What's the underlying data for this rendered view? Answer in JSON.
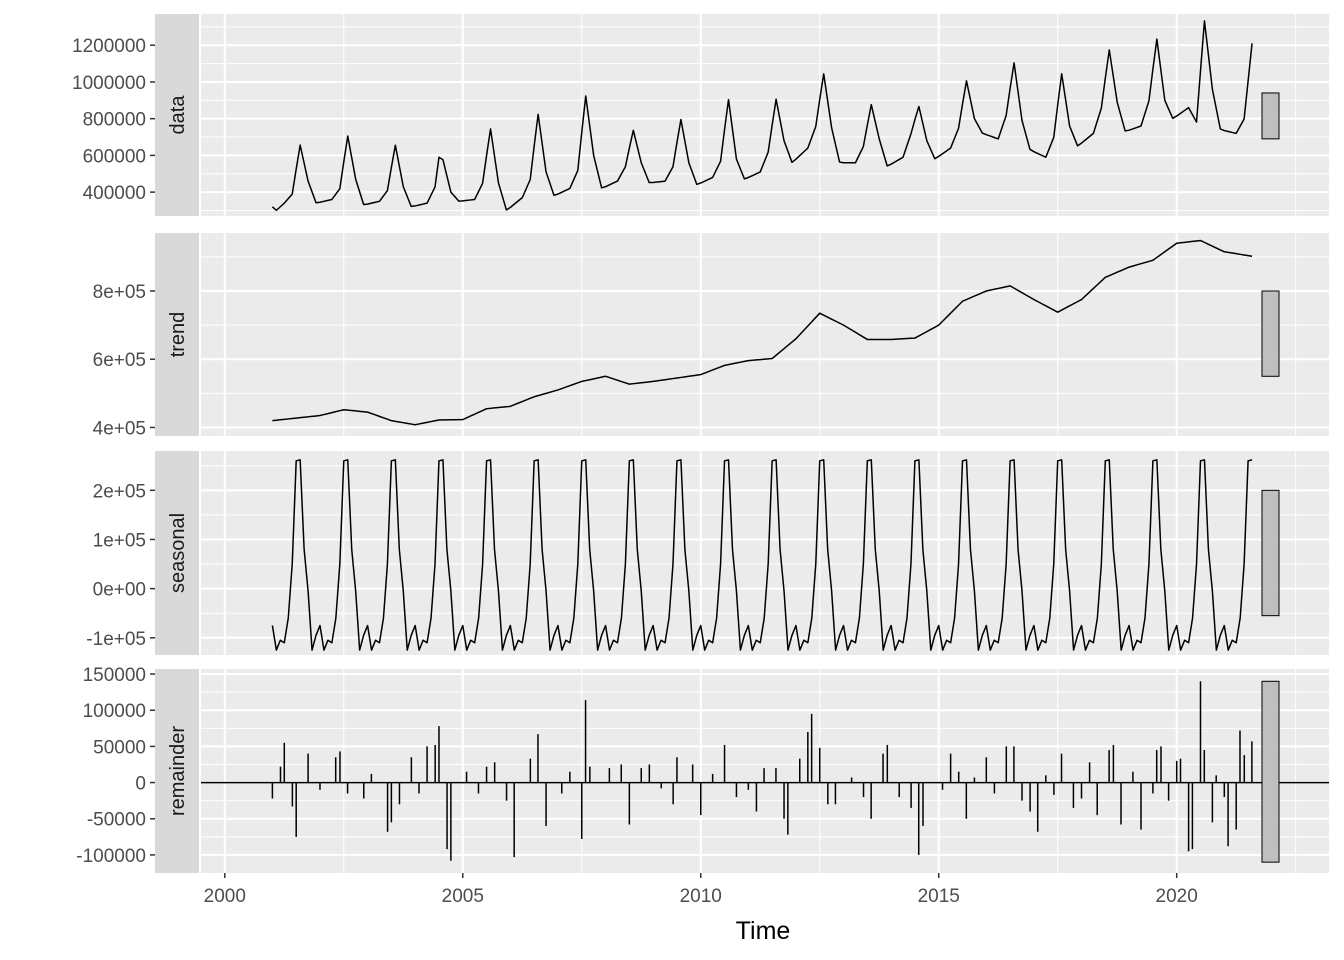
{
  "chart_data": {
    "type": "line",
    "title": "",
    "xlabel": "Time",
    "x_ticks": [
      2000,
      2005,
      2010,
      2015,
      2020
    ],
    "xlim": [
      1999.5,
      2023.2
    ],
    "time": {
      "start": 2001.0,
      "frequency": 12,
      "n": 248
    },
    "legend": "none",
    "grid": true,
    "panels": [
      {
        "name": "data",
        "ylim": [
          270000,
          1370000
        ],
        "y_ticks": [
          400000,
          600000,
          800000,
          1000000,
          1200000
        ],
        "y_tick_labels": [
          "400000",
          "600000",
          "800000",
          "1000000",
          "1200000"
        ],
        "range_bar": [
          690000,
          940000
        ],
        "anchors": [
          [
            2001.0,
            320000
          ],
          [
            2001.08,
            300000
          ],
          [
            2001.25,
            340000
          ],
          [
            2001.42,
            390000
          ],
          [
            2001.58,
            660000
          ],
          [
            2001.75,
            460000
          ],
          [
            2001.92,
            340000
          ],
          [
            2002.25,
            360000
          ],
          [
            2002.42,
            420000
          ],
          [
            2002.58,
            710000
          ],
          [
            2002.75,
            470000
          ],
          [
            2002.92,
            330000
          ],
          [
            2003.25,
            350000
          ],
          [
            2003.42,
            410000
          ],
          [
            2003.58,
            660000
          ],
          [
            2003.75,
            430000
          ],
          [
            2003.92,
            320000
          ],
          [
            2004.25,
            340000
          ],
          [
            2004.42,
            430000
          ],
          [
            2004.5,
            590000
          ],
          [
            2004.58,
            580000
          ],
          [
            2004.75,
            400000
          ],
          [
            2004.92,
            350000
          ],
          [
            2005.25,
            360000
          ],
          [
            2005.42,
            450000
          ],
          [
            2005.58,
            750000
          ],
          [
            2005.75,
            450000
          ],
          [
            2005.92,
            300000
          ],
          [
            2006.25,
            370000
          ],
          [
            2006.42,
            470000
          ],
          [
            2006.58,
            830000
          ],
          [
            2006.75,
            510000
          ],
          [
            2006.92,
            380000
          ],
          [
            2007.25,
            420000
          ],
          [
            2007.42,
            520000
          ],
          [
            2007.58,
            930000
          ],
          [
            2007.75,
            600000
          ],
          [
            2007.92,
            420000
          ],
          [
            2008.25,
            460000
          ],
          [
            2008.42,
            540000
          ],
          [
            2008.58,
            740000
          ],
          [
            2008.75,
            560000
          ],
          [
            2008.92,
            450000
          ],
          [
            2009.25,
            460000
          ],
          [
            2009.42,
            540000
          ],
          [
            2009.58,
            800000
          ],
          [
            2009.75,
            560000
          ],
          [
            2009.92,
            440000
          ],
          [
            2010.25,
            480000
          ],
          [
            2010.42,
            570000
          ],
          [
            2010.58,
            910000
          ],
          [
            2010.75,
            580000
          ],
          [
            2010.92,
            470000
          ],
          [
            2011.25,
            510000
          ],
          [
            2011.42,
            620000
          ],
          [
            2011.58,
            910000
          ],
          [
            2011.75,
            680000
          ],
          [
            2011.92,
            560000
          ],
          [
            2012.25,
            640000
          ],
          [
            2012.42,
            760000
          ],
          [
            2012.58,
            1050000
          ],
          [
            2012.75,
            750000
          ],
          [
            2012.92,
            560000
          ],
          [
            2013.25,
            560000
          ],
          [
            2013.42,
            650000
          ],
          [
            2013.58,
            880000
          ],
          [
            2013.75,
            690000
          ],
          [
            2013.92,
            540000
          ],
          [
            2014.25,
            590000
          ],
          [
            2014.42,
            720000
          ],
          [
            2014.58,
            870000
          ],
          [
            2014.75,
            680000
          ],
          [
            2014.92,
            580000
          ],
          [
            2015.25,
            640000
          ],
          [
            2015.42,
            750000
          ],
          [
            2015.58,
            1010000
          ],
          [
            2015.75,
            800000
          ],
          [
            2015.92,
            720000
          ],
          [
            2016.25,
            690000
          ],
          [
            2016.42,
            820000
          ],
          [
            2016.58,
            1110000
          ],
          [
            2016.75,
            790000
          ],
          [
            2016.92,
            630000
          ],
          [
            2017.25,
            590000
          ],
          [
            2017.42,
            700000
          ],
          [
            2017.58,
            1050000
          ],
          [
            2017.75,
            760000
          ],
          [
            2017.92,
            650000
          ],
          [
            2018.25,
            720000
          ],
          [
            2018.42,
            860000
          ],
          [
            2018.58,
            1180000
          ],
          [
            2018.75,
            890000
          ],
          [
            2018.92,
            730000
          ],
          [
            2019.25,
            760000
          ],
          [
            2019.42,
            900000
          ],
          [
            2019.58,
            1240000
          ],
          [
            2019.75,
            900000
          ],
          [
            2019.92,
            800000
          ],
          [
            2020.25,
            860000
          ],
          [
            2020.42,
            780000
          ],
          [
            2020.58,
            1340000
          ],
          [
            2020.75,
            960000
          ],
          [
            2020.92,
            740000
          ],
          [
            2021.25,
            720000
          ],
          [
            2021.42,
            800000
          ],
          [
            2021.58,
            1210000
          ],
          [
            2021.67,
            1220000
          ]
        ]
      },
      {
        "name": "trend",
        "ylim": [
          375000,
          970000
        ],
        "y_ticks": [
          400000,
          600000,
          800000
        ],
        "y_tick_labels": [
          "4e+05",
          "6e+05",
          "8e+05"
        ],
        "range_bar": [
          550000,
          800000
        ],
        "anchors": [
          [
            2001.0,
            420000
          ],
          [
            2002.0,
            435000
          ],
          [
            2002.5,
            452000
          ],
          [
            2003.0,
            445000
          ],
          [
            2003.5,
            420000
          ],
          [
            2004.0,
            408000
          ],
          [
            2004.5,
            422000
          ],
          [
            2005.0,
            423000
          ],
          [
            2005.5,
            455000
          ],
          [
            2006.0,
            462000
          ],
          [
            2006.5,
            490000
          ],
          [
            2007.0,
            510000
          ],
          [
            2007.5,
            535000
          ],
          [
            2008.0,
            550000
          ],
          [
            2008.5,
            527000
          ],
          [
            2009.0,
            535000
          ],
          [
            2009.5,
            545000
          ],
          [
            2010.0,
            555000
          ],
          [
            2010.5,
            582000
          ],
          [
            2011.0,
            596000
          ],
          [
            2011.5,
            602000
          ],
          [
            2012.0,
            660000
          ],
          [
            2012.5,
            735000
          ],
          [
            2013.0,
            700000
          ],
          [
            2013.5,
            658000
          ],
          [
            2014.0,
            658000
          ],
          [
            2014.5,
            662000
          ],
          [
            2015.0,
            700000
          ],
          [
            2015.5,
            770000
          ],
          [
            2016.0,
            800000
          ],
          [
            2016.5,
            815000
          ],
          [
            2017.0,
            775000
          ],
          [
            2017.5,
            738000
          ],
          [
            2018.0,
            775000
          ],
          [
            2018.5,
            840000
          ],
          [
            2019.0,
            870000
          ],
          [
            2019.5,
            890000
          ],
          [
            2020.0,
            940000
          ],
          [
            2020.5,
            948000
          ],
          [
            2021.0,
            915000
          ],
          [
            2021.67,
            900000
          ]
        ]
      },
      {
        "name": "seasonal",
        "ylim": [
          -135000,
          280000
        ],
        "y_ticks": [
          -100000,
          0,
          100000,
          200000
        ],
        "y_tick_labels": [
          "-1e+05",
          "0e+00",
          "1e+05",
          "2e+05"
        ],
        "range_bar": [
          -55000,
          200000
        ],
        "season": [
          -75000,
          -125000,
          -105000,
          -110000,
          -60000,
          50000,
          260000,
          262000,
          80000,
          -5000,
          -125000,
          -95000
        ]
      },
      {
        "name": "remainder",
        "ylim": [
          -125000,
          157000
        ],
        "y_ticks": [
          -100000,
          -50000,
          0,
          50000,
          100000,
          150000
        ],
        "y_tick_labels": [
          "-100000",
          "-50000",
          "0",
          "50000",
          "100000",
          "150000"
        ],
        "range_bar": [
          -110000,
          140000
        ],
        "spikes": [
          [
            2001.0,
            -22000
          ],
          [
            2001.17,
            22000
          ],
          [
            2001.25,
            55000
          ],
          [
            2001.42,
            -33000
          ],
          [
            2001.5,
            -75000
          ],
          [
            2001.75,
            40000
          ],
          [
            2002.0,
            -10000
          ],
          [
            2002.33,
            35000
          ],
          [
            2002.42,
            43000
          ],
          [
            2002.58,
            -15000
          ],
          [
            2002.92,
            -22000
          ],
          [
            2003.08,
            12000
          ],
          [
            2003.42,
            -68000
          ],
          [
            2003.5,
            -55000
          ],
          [
            2003.67,
            -30000
          ],
          [
            2003.92,
            35000
          ],
          [
            2004.08,
            -15000
          ],
          [
            2004.25,
            50000
          ],
          [
            2004.42,
            52000
          ],
          [
            2004.5,
            78000
          ],
          [
            2004.67,
            -92000
          ],
          [
            2004.75,
            -108000
          ],
          [
            2005.08,
            15000
          ],
          [
            2005.33,
            -15000
          ],
          [
            2005.5,
            22000
          ],
          [
            2005.67,
            28000
          ],
          [
            2005.92,
            -25000
          ],
          [
            2006.08,
            -103000
          ],
          [
            2006.42,
            33000
          ],
          [
            2006.58,
            67000
          ],
          [
            2006.75,
            -60000
          ],
          [
            2007.08,
            -15000
          ],
          [
            2007.25,
            15000
          ],
          [
            2007.5,
            -78000
          ],
          [
            2007.58,
            114000
          ],
          [
            2007.67,
            22000
          ],
          [
            2008.08,
            20000
          ],
          [
            2008.33,
            25000
          ],
          [
            2008.5,
            -58000
          ],
          [
            2008.75,
            20000
          ],
          [
            2008.92,
            25000
          ],
          [
            2009.17,
            -8000
          ],
          [
            2009.42,
            -30000
          ],
          [
            2009.5,
            35000
          ],
          [
            2009.83,
            25000
          ],
          [
            2010.0,
            -45000
          ],
          [
            2010.25,
            12000
          ],
          [
            2010.5,
            52000
          ],
          [
            2010.75,
            -20000
          ],
          [
            2011.0,
            -10000
          ],
          [
            2011.17,
            -40000
          ],
          [
            2011.33,
            20000
          ],
          [
            2011.58,
            20000
          ],
          [
            2011.75,
            -50000
          ],
          [
            2011.83,
            -72000
          ],
          [
            2012.08,
            33000
          ],
          [
            2012.25,
            70000
          ],
          [
            2012.33,
            95000
          ],
          [
            2012.5,
            48000
          ],
          [
            2012.67,
            -30000
          ],
          [
            2012.83,
            -30000
          ],
          [
            2013.17,
            7000
          ],
          [
            2013.42,
            -20000
          ],
          [
            2013.58,
            -50000
          ],
          [
            2013.83,
            40000
          ],
          [
            2013.92,
            52000
          ],
          [
            2014.17,
            -20000
          ],
          [
            2014.42,
            -35000
          ],
          [
            2014.58,
            -100000
          ],
          [
            2014.67,
            -60000
          ],
          [
            2015.08,
            -10000
          ],
          [
            2015.25,
            40000
          ],
          [
            2015.42,
            15000
          ],
          [
            2015.58,
            -50000
          ],
          [
            2015.75,
            7000
          ],
          [
            2016.0,
            35000
          ],
          [
            2016.17,
            -15000
          ],
          [
            2016.42,
            50000
          ],
          [
            2016.58,
            50000
          ],
          [
            2016.75,
            -25000
          ],
          [
            2016.92,
            -40000
          ],
          [
            2017.08,
            -68000
          ],
          [
            2017.25,
            10000
          ],
          [
            2017.42,
            -17000
          ],
          [
            2017.58,
            40000
          ],
          [
            2017.83,
            -35000
          ],
          [
            2018.0,
            -22000
          ],
          [
            2018.17,
            28000
          ],
          [
            2018.33,
            -45000
          ],
          [
            2018.58,
            45000
          ],
          [
            2018.67,
            52000
          ],
          [
            2018.83,
            -58000
          ],
          [
            2019.08,
            15000
          ],
          [
            2019.25,
            -65000
          ],
          [
            2019.5,
            -15000
          ],
          [
            2019.58,
            45000
          ],
          [
            2019.67,
            50000
          ],
          [
            2019.83,
            -25000
          ],
          [
            2020.0,
            30000
          ],
          [
            2020.08,
            33000
          ],
          [
            2020.25,
            -95000
          ],
          [
            2020.33,
            -92000
          ],
          [
            2020.5,
            140000
          ],
          [
            2020.58,
            45000
          ],
          [
            2020.75,
            -55000
          ],
          [
            2020.83,
            10000
          ],
          [
            2021.0,
            -20000
          ],
          [
            2021.08,
            -88000
          ],
          [
            2021.25,
            -65000
          ],
          [
            2021.33,
            72000
          ],
          [
            2021.42,
            38000
          ],
          [
            2021.58,
            57000
          ]
        ]
      }
    ]
  }
}
